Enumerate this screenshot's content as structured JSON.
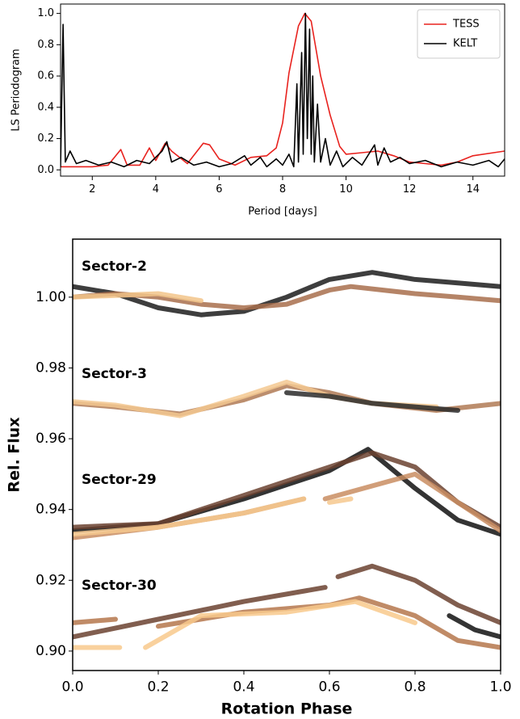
{
  "chart_data": [
    {
      "type": "line",
      "xlabel": "Period [days]",
      "ylabel": "LS Periodogram",
      "xlim": [
        1,
        15
      ],
      "ylim": [
        -0.04,
        1.06
      ],
      "xticks": [
        2,
        4,
        6,
        8,
        10,
        12,
        14
      ],
      "yticks": [
        {
          "value": 0,
          "label": "0.0"
        },
        0.2,
        0.4,
        0.6,
        0.8,
        {
          "value": 1,
          "label": "1.0"
        }
      ],
      "legend": "upper right",
      "series": [
        {
          "name": "TESS",
          "color": "#e8221e",
          "x": [
            1,
            1.5,
            2,
            2.5,
            2.9,
            3.1,
            3.5,
            3.8,
            4.0,
            4.3,
            4.5,
            5,
            5.5,
            5.7,
            6,
            6.5,
            7,
            7.5,
            7.8,
            8,
            8.2,
            8.5,
            8.7,
            8.9,
            9.2,
            9.5,
            9.8,
            10,
            10.5,
            11,
            11.5,
            12,
            12.5,
            13,
            13.5,
            14,
            15
          ],
          "values": [
            0.02,
            0.02,
            0.02,
            0.03,
            0.13,
            0.03,
            0.03,
            0.14,
            0.06,
            0.17,
            0.12,
            0.04,
            0.17,
            0.16,
            0.07,
            0.03,
            0.08,
            0.09,
            0.14,
            0.3,
            0.62,
            0.92,
            1.0,
            0.95,
            0.6,
            0.35,
            0.15,
            0.1,
            0.11,
            0.12,
            0.09,
            0.05,
            0.04,
            0.03,
            0.05,
            0.09,
            0.12
          ]
        },
        {
          "name": "KELT",
          "color": "#000000",
          "x": [
            1.0,
            1.08,
            1.15,
            1.3,
            1.5,
            1.8,
            2.2,
            2.6,
            3.0,
            3.4,
            3.8,
            4.2,
            4.35,
            4.5,
            4.8,
            5.2,
            5.6,
            6.0,
            6.4,
            6.8,
            7.0,
            7.3,
            7.5,
            7.8,
            8.0,
            8.2,
            8.35,
            8.45,
            8.5,
            8.6,
            8.65,
            8.72,
            8.78,
            8.85,
            8.9,
            8.95,
            9.0,
            9.1,
            9.2,
            9.35,
            9.5,
            9.7,
            9.9,
            10.2,
            10.5,
            10.9,
            11.0,
            11.2,
            11.4,
            11.7,
            12.0,
            12.5,
            13.0,
            13.5,
            14.0,
            14.5,
            14.8,
            15.0
          ],
          "values": [
            0.02,
            0.93,
            0.05,
            0.12,
            0.04,
            0.06,
            0.03,
            0.05,
            0.02,
            0.06,
            0.04,
            0.12,
            0.18,
            0.05,
            0.08,
            0.03,
            0.05,
            0.02,
            0.04,
            0.09,
            0.03,
            0.08,
            0.02,
            0.07,
            0.03,
            0.1,
            0.02,
            0.55,
            0.05,
            0.75,
            0.1,
            1.0,
            0.2,
            0.9,
            0.1,
            0.6,
            0.05,
            0.42,
            0.05,
            0.2,
            0.03,
            0.12,
            0.02,
            0.08,
            0.03,
            0.16,
            0.03,
            0.14,
            0.05,
            0.08,
            0.04,
            0.06,
            0.02,
            0.05,
            0.03,
            0.06,
            0.02,
            0.07
          ]
        }
      ]
    },
    {
      "type": "line",
      "xlabel": "Rotation Phase",
      "ylabel": "Rel. Flux",
      "xlim": [
        0,
        1
      ],
      "ylim": [
        0.8945,
        1.0164
      ],
      "xticks": [
        {
          "value": 0,
          "label": "0.0"
        },
        0.2,
        0.4,
        0.6,
        0.8,
        {
          "value": 1,
          "label": "1.0"
        }
      ],
      "yticks": [
        {
          "value": 0.9,
          "label": "0.90"
        },
        {
          "value": 0.92,
          "label": "0.92"
        },
        {
          "value": 0.94,
          "label": "0.94"
        },
        {
          "value": 0.96,
          "label": "0.96"
        },
        {
          "value": 0.98,
          "label": "0.98"
        },
        {
          "value": 1.0,
          "label": "1.00"
        }
      ],
      "annotations": [
        "Sector-2",
        "Sector-3",
        "Sector-29",
        "Sector-30"
      ],
      "series": [
        {
          "color": "#1c1c1c",
          "x": [
            0,
            0.1,
            0.2,
            0.3,
            0.4,
            0.5,
            0.6,
            0.7,
            0.8,
            0.9,
            1.0
          ],
          "values": [
            1.003,
            1.001,
            0.997,
            0.995,
            0.996,
            1.0,
            1.005,
            1.007,
            1.005,
            1.004,
            1.003
          ]
        },
        {
          "color": "#a86e4c",
          "x": [
            0,
            0.1,
            0.2,
            0.3,
            0.4,
            0.5,
            0.6,
            0.65,
            0.8,
            0.9,
            1.0
          ],
          "values": [
            1.0,
            1.001,
            1.0,
            0.998,
            0.997,
            0.998,
            1.002,
            1.003,
            1.001,
            1.0,
            0.999
          ]
        },
        {
          "color": "#f2c48a",
          "x": [
            0,
            0.1,
            0.2,
            0.3
          ],
          "values": [
            1.0,
            1.0005,
            1.001,
            0.999
          ]
        },
        {
          "color": "#b07a55",
          "x": [
            0,
            0.1,
            0.25,
            0.4,
            0.5,
            0.6,
            0.7,
            0.85,
            1.0
          ],
          "values": [
            0.97,
            0.969,
            0.967,
            0.971,
            0.975,
            0.973,
            0.97,
            0.968,
            0.97
          ]
        },
        {
          "color": "#f3c890",
          "x": [
            0,
            0.1,
            0.25,
            0.4,
            0.5,
            0.6,
            0.7,
            0.85
          ],
          "values": [
            0.9705,
            0.9695,
            0.9665,
            0.972,
            0.976,
            0.972,
            0.97,
            0.969
          ]
        },
        {
          "color": "#2a2a2a",
          "x": [
            0.5,
            0.6,
            0.7,
            0.9
          ],
          "values": [
            0.973,
            0.972,
            0.97,
            0.968
          ]
        },
        {
          "color": "#111111",
          "x": [
            0,
            0.2,
            0.4,
            0.6,
            0.69,
            0.8,
            0.9,
            1.0
          ],
          "values": [
            0.934,
            0.936,
            0.943,
            0.951,
            0.957,
            0.946,
            0.937,
            0.933
          ]
        },
        {
          "color": "#6b4230",
          "x": [
            0,
            0.2,
            0.4,
            0.6,
            0.7,
            0.8,
            0.9,
            1.0
          ],
          "values": [
            0.935,
            0.936,
            0.944,
            0.952,
            0.956,
            0.952,
            0.942,
            0.935
          ]
        },
        {
          "color": "#c98d61",
          "x": [
            0,
            0.2,
            0.4,
            0.54,
            0.565,
            0.59,
            0.68,
            0.8,
            0.9,
            1.0
          ],
          "values": [
            0.932,
            0.935,
            0.939,
            0.943,
            null,
            0.943,
            0.946,
            0.95,
            0.942,
            0.934
          ]
        },
        {
          "color": "#f6c88e",
          "x": [
            0,
            0.2,
            0.4,
            0.54,
            0.57,
            0.6,
            0.65
          ],
          "values": [
            0.933,
            0.935,
            0.939,
            0.943,
            null,
            0.942,
            0.943
          ]
        },
        {
          "color": "#6b4230",
          "x": [
            0,
            0.2,
            0.4,
            0.59,
            0.605,
            0.62,
            0.7,
            0.8,
            0.9,
            1.0
          ],
          "values": [
            0.904,
            0.909,
            0.914,
            0.918,
            null,
            0.921,
            0.924,
            0.92,
            0.913,
            0.908
          ]
        },
        {
          "color": "#111111",
          "x": [
            0.88,
            0.94,
            1.0
          ],
          "values": [
            0.91,
            0.906,
            0.904
          ]
        },
        {
          "color": "#b5774c",
          "x": [
            0,
            0.1,
            0.15,
            0.2,
            0.4,
            0.6,
            0.67,
            0.8,
            0.9,
            1.0
          ],
          "values": [
            0.908,
            0.909,
            null,
            0.907,
            0.911,
            0.913,
            0.915,
            0.91,
            0.903,
            0.901
          ]
        },
        {
          "color": "#f8c98c",
          "x": [
            0,
            0.11,
            0.14,
            0.17,
            0.3,
            0.5,
            0.66,
            0.8
          ],
          "values": [
            0.901,
            0.901,
            null,
            0.901,
            0.91,
            0.911,
            0.914,
            0.908
          ]
        }
      ]
    }
  ]
}
